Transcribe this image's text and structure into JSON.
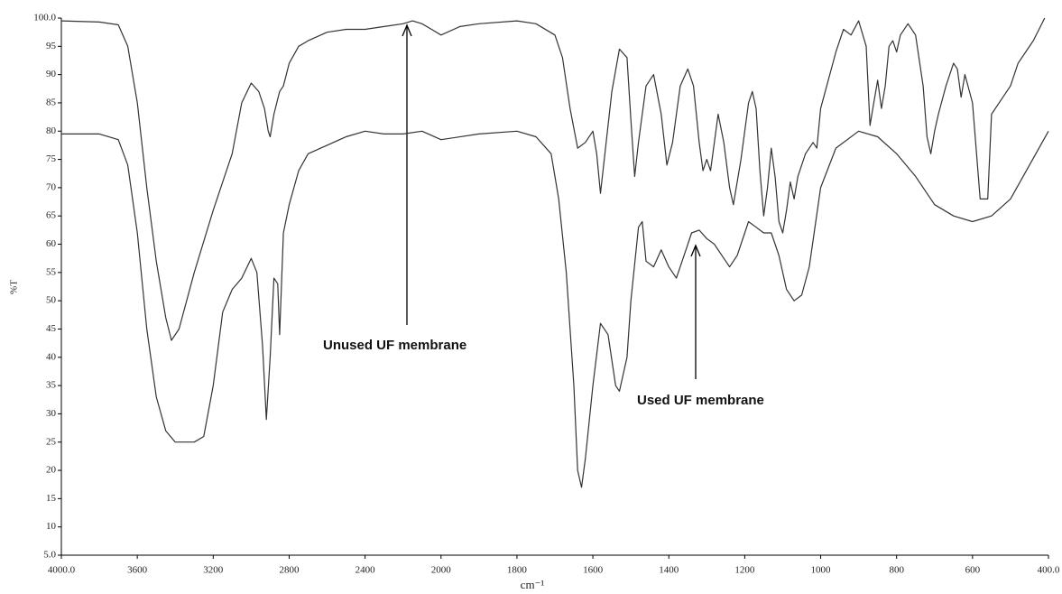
{
  "chart_data": {
    "type": "line",
    "y_label": "%T",
    "x_label": "cm⁻¹",
    "xlim": [
      4000,
      400
    ],
    "ylim": [
      5,
      100
    ],
    "xticks": [
      {
        "value": 4000,
        "label": "4000.0"
      },
      3600,
      3200,
      2800,
      2400,
      2000,
      1800,
      1600,
      1400,
      1200,
      1000,
      800,
      600,
      {
        "value": 400,
        "label": "400.0"
      }
    ],
    "yticks": [
      {
        "value": 100,
        "label": "100.0"
      },
      95,
      90,
      85,
      80,
      75,
      70,
      65,
      60,
      55,
      50,
      45,
      40,
      35,
      30,
      25,
      20,
      15,
      10,
      {
        "value": 5,
        "label": "5.0"
      }
    ],
    "annotations": [
      {
        "text": "Unused UF membrane"
      },
      {
        "text": "Used UF membrane"
      }
    ],
    "series": [
      {
        "color": "#333333",
        "x": [
          4000,
          3800,
          3700,
          3650,
          3600,
          3550,
          3500,
          3450,
          3420,
          3380,
          3300,
          3200,
          3100,
          3050,
          3000,
          2960,
          2930,
          2910,
          2900,
          2880,
          2850,
          2830,
          2800,
          2750,
          2700,
          2600,
          2500,
          2400,
          2300,
          2200,
          2150,
          2100,
          2050,
          2000,
          1950,
          1900,
          1800,
          1750,
          1700,
          1680,
          1660,
          1640,
          1620,
          1600,
          1590,
          1580,
          1570,
          1550,
          1530,
          1510,
          1500,
          1490,
          1480,
          1460,
          1440,
          1420,
          1405,
          1390,
          1370,
          1350,
          1335,
          1320,
          1310,
          1300,
          1290,
          1280,
          1270,
          1255,
          1240,
          1230,
          1210,
          1190,
          1180,
          1170,
          1160,
          1150,
          1140,
          1130,
          1120,
          1110,
          1100,
          1090,
          1080,
          1070,
          1060,
          1040,
          1020,
          1010,
          1000,
          960,
          940,
          920,
          900,
          880,
          870,
          860,
          850,
          840,
          830,
          820,
          810,
          800,
          790,
          770,
          750,
          730,
          720,
          710,
          700,
          690,
          670,
          650,
          640,
          630,
          620,
          600,
          580,
          560,
          550,
          530,
          500,
          480,
          440,
          410
        ],
        "values": [
          99.5,
          99.3,
          98.8,
          95,
          85,
          70,
          57,
          47,
          43,
          45,
          55,
          66,
          76,
          85,
          88.5,
          87,
          84,
          80,
          79,
          83,
          87,
          88,
          92,
          95,
          96,
          97.5,
          98,
          98,
          98.5,
          99,
          99.5,
          99,
          98,
          97,
          98.5,
          99,
          99.5,
          99,
          97,
          93,
          84,
          77,
          78,
          80,
          76,
          69,
          75,
          87,
          94.5,
          93,
          82,
          72,
          78,
          88,
          90,
          83,
          74,
          78,
          88,
          91,
          88,
          78,
          73,
          75,
          73,
          78,
          83,
          78,
          70,
          67,
          75,
          85,
          87,
          84,
          73,
          65,
          70,
          77,
          72,
          64,
          62,
          66,
          71,
          68,
          72,
          76,
          78,
          77,
          84,
          94,
          98,
          97,
          99.5,
          95,
          81,
          85,
          89,
          84,
          88,
          95,
          96,
          94,
          97,
          99,
          97,
          88,
          79,
          76,
          80,
          83,
          88,
          92,
          91,
          86,
          90,
          85,
          68,
          68,
          83,
          85,
          88,
          92,
          96,
          100
        ]
      },
      {
        "color": "#333333",
        "x": [
          4000,
          3800,
          3700,
          3650,
          3600,
          3550,
          3500,
          3450,
          3400,
          3300,
          3250,
          3200,
          3150,
          3100,
          3050,
          3000,
          2970,
          2940,
          2920,
          2900,
          2880,
          2860,
          2850,
          2830,
          2800,
          2750,
          2700,
          2600,
          2500,
          2400,
          2300,
          2200,
          2100,
          2000,
          1900,
          1800,
          1750,
          1710,
          1690,
          1670,
          1650,
          1640,
          1630,
          1620,
          1600,
          1580,
          1560,
          1540,
          1530,
          1510,
          1500,
          1480,
          1470,
          1460,
          1440,
          1420,
          1400,
          1380,
          1360,
          1340,
          1320,
          1300,
          1280,
          1260,
          1240,
          1220,
          1200,
          1190,
          1170,
          1150,
          1130,
          1110,
          1090,
          1070,
          1050,
          1030,
          1000,
          960,
          900,
          850,
          800,
          750,
          700,
          650,
          600,
          550,
          500,
          450,
          400
        ],
        "values": [
          79.5,
          79.5,
          78.5,
          74,
          62,
          45,
          33,
          27,
          25,
          25,
          26,
          35,
          48,
          52,
          54,
          57.5,
          55,
          42,
          29,
          40,
          54,
          53,
          44,
          62,
          67,
          73,
          76,
          77.5,
          79,
          80,
          79.5,
          79.5,
          80,
          78.5,
          79.5,
          80,
          79,
          76,
          68,
          55,
          35,
          20,
          17,
          22,
          35,
          46,
          44,
          35,
          34,
          40,
          50,
          63,
          64,
          57,
          56,
          59,
          56,
          54,
          58,
          62,
          62.5,
          61,
          60,
          58,
          56,
          58,
          62,
          64,
          63,
          62,
          62,
          58,
          52,
          50,
          51,
          56,
          70,
          77,
          80,
          79,
          76,
          72,
          67,
          65,
          64,
          65,
          68,
          74,
          80
        ]
      }
    ]
  }
}
